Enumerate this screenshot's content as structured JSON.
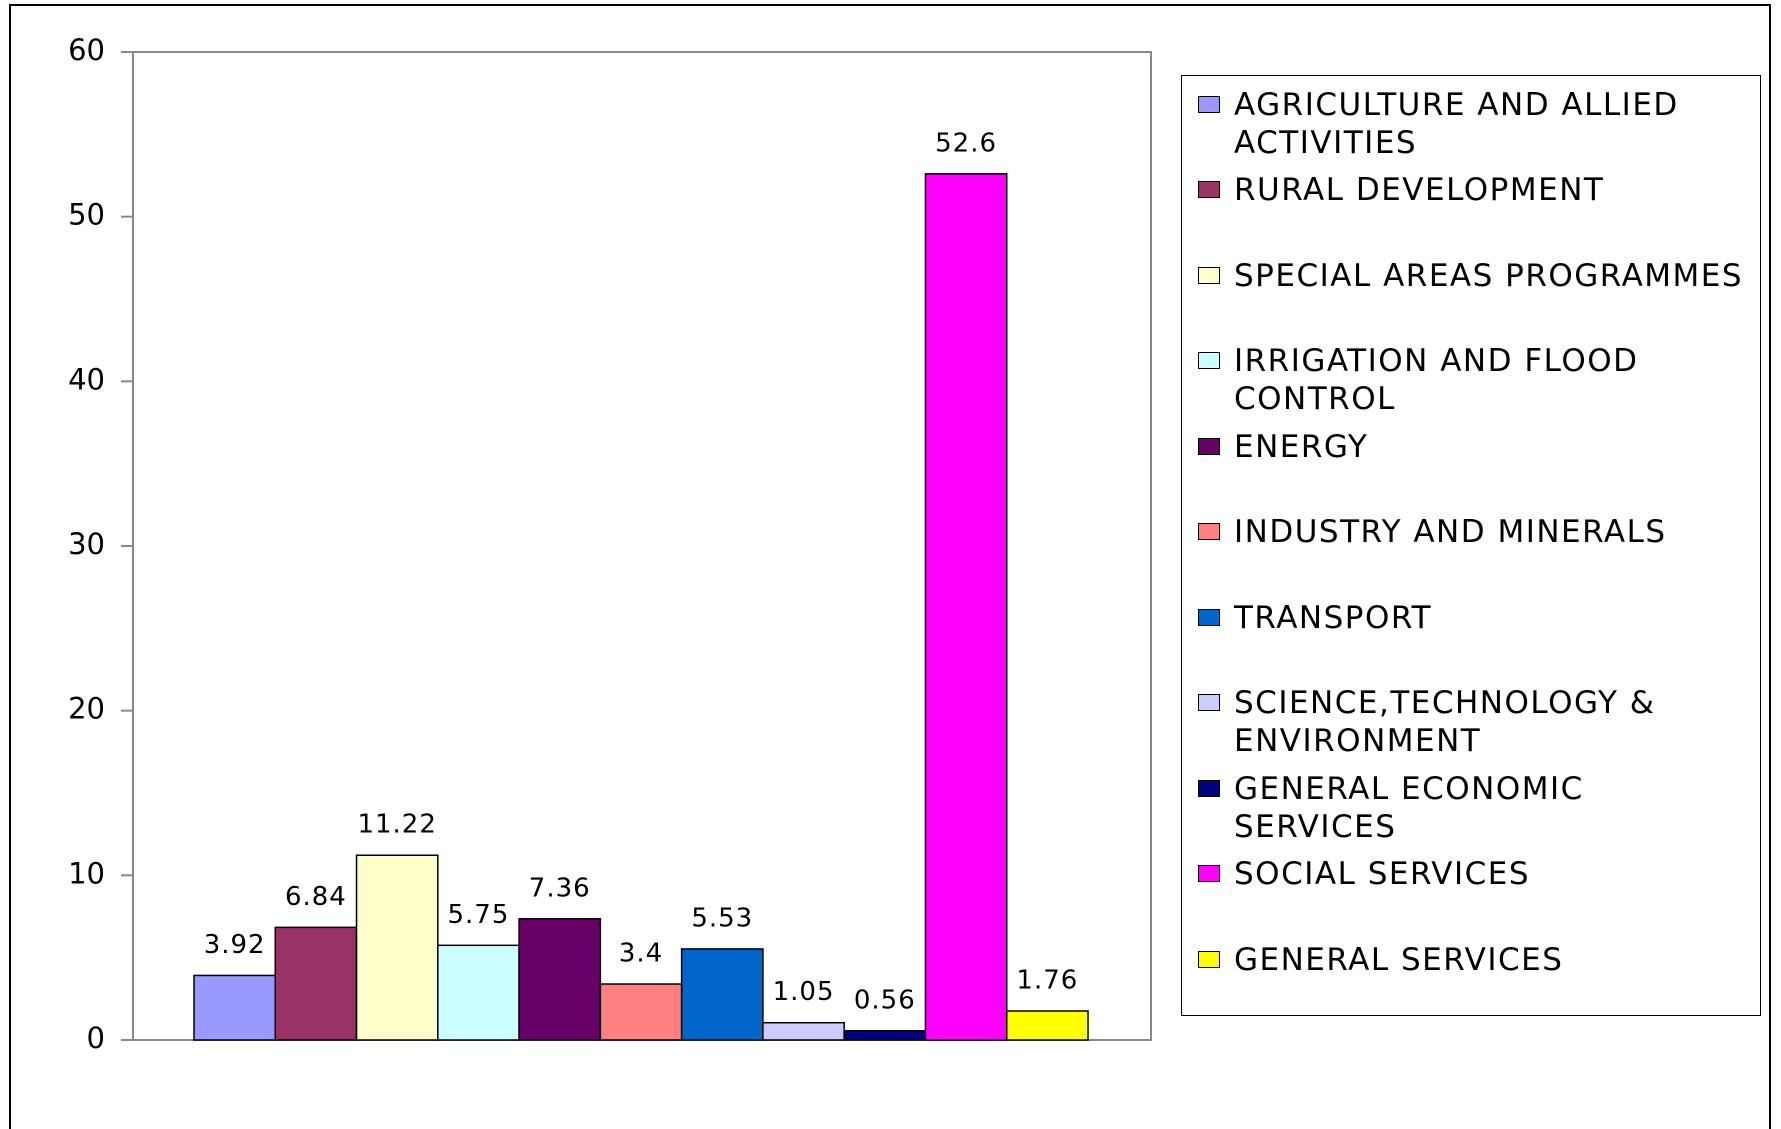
{
  "chart_data": {
    "type": "bar",
    "categories": [
      null
    ],
    "series": [
      {
        "name": "AGRICULTURE AND ALLIED ACTIVITIES",
        "color": "#9999ff",
        "values": [
          3.92
        ]
      },
      {
        "name": "RURAL DEVELOPMENT",
        "color": "#993366",
        "values": [
          6.84
        ]
      },
      {
        "name": "SPECIAL AREAS PROGRAMMES",
        "color": "#ffffcc",
        "values": [
          11.22
        ]
      },
      {
        "name": "IRRIGATION AND FLOOD CONTROL",
        "color": "#ccffff",
        "values": [
          5.75
        ]
      },
      {
        "name": "ENERGY",
        "color": "#660066",
        "values": [
          7.36
        ]
      },
      {
        "name": "INDUSTRY AND MINERALS",
        "color": "#ff8080",
        "values": [
          3.4
        ]
      },
      {
        "name": "TRANSPORT",
        "color": "#0066cc",
        "values": [
          5.53
        ]
      },
      {
        "name": "SCIENCE,TECHNOLOGY & ENVIRONMENT",
        "color": "#ccccff",
        "values": [
          1.05
        ]
      },
      {
        "name": "GENERAL ECONOMIC SERVICES",
        "color": "#000080",
        "values": [
          0.56
        ]
      },
      {
        "name": "SOCIAL SERVICES",
        "color": "#ff00ff",
        "values": [
          52.6
        ]
      },
      {
        "name": "GENERAL SERVICES",
        "color": "#ffff00",
        "values": [
          1.76
        ]
      }
    ],
    "ylim": [
      0,
      60
    ],
    "yticks": [
      0,
      10,
      20,
      30,
      40,
      50,
      60
    ],
    "grid": false,
    "legend": "right"
  }
}
